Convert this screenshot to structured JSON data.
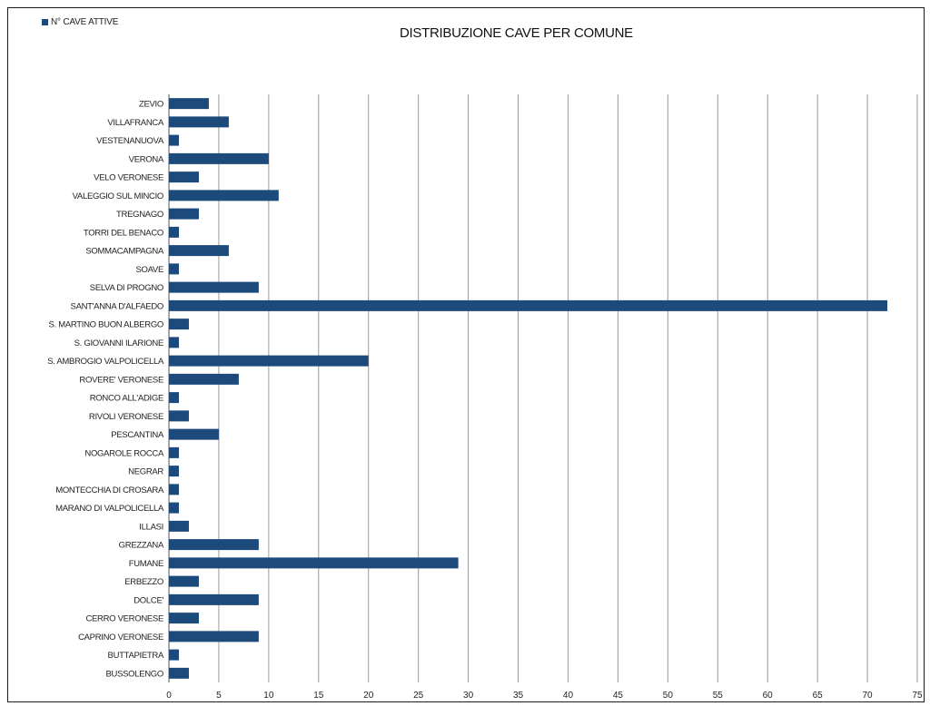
{
  "chart_data": {
    "type": "bar",
    "orientation": "horizontal",
    "title": "DISTRIBUZIONE CAVE PER COMUNE",
    "legend": {
      "label": "N° CAVE ATTIVE",
      "placement": "top-left"
    },
    "series": [
      {
        "name": "N° CAVE ATTIVE",
        "color": "#1c4a7a"
      }
    ],
    "categories": [
      "ZEVIO",
      "VILLAFRANCA",
      "VESTENANUOVA",
      "VERONA",
      "VELO VERONESE",
      "VALEGGIO SUL MINCIO",
      "TREGNAGO",
      "TORRI DEL BENACO",
      "SOMMACAMPAGNA",
      "SOAVE",
      "SELVA DI PROGNO",
      "SANT'ANNA D'ALFAEDO",
      "S. MARTINO BUON ALBERGO",
      "S. GIOVANNI ILARIONE",
      "S. AMBROGIO VALPOLICELLA",
      "ROVERE' VERONESE",
      "RONCO ALL'ADIGE",
      "RIVOLI VERONESE",
      "PESCANTINA",
      "NOGAROLE ROCCA",
      "NEGRAR",
      "MONTECCHIA DI CROSARA",
      "MARANO DI VALPOLICELLA",
      "ILLASI",
      "GREZZANA",
      "FUMANE",
      "ERBEZZO",
      "DOLCE'",
      "CERRO VERONESE",
      "CAPRINO VERONESE",
      "BUTTAPIETRA",
      "BUSSOLENGO"
    ],
    "values": [
      4,
      6,
      1,
      10,
      3,
      11,
      3,
      1,
      6,
      1,
      9,
      72,
      2,
      1,
      20,
      7,
      1,
      2,
      5,
      1,
      1,
      1,
      1,
      2,
      9,
      29,
      3,
      9,
      3,
      9,
      1,
      2
    ],
    "xlim": [
      0,
      75
    ],
    "xticks": [
      "0",
      "5",
      "10",
      "15",
      "20",
      "25",
      "30",
      "35",
      "40",
      "45",
      "50",
      "55",
      "60",
      "65",
      "70",
      "75"
    ],
    "grid": "vertical"
  }
}
